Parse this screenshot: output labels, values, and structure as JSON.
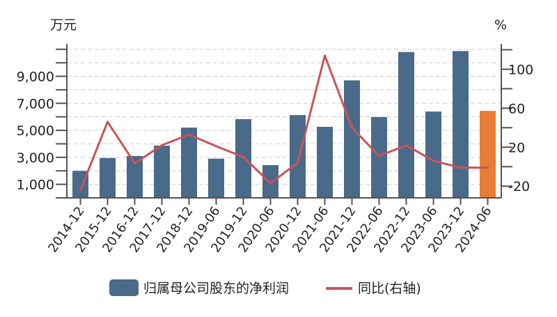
{
  "chart_data": {
    "type": "bar+line",
    "left_unit": "万元",
    "right_unit": "%",
    "categories": [
      "2014-12",
      "2015-12",
      "2016-12",
      "2017-12",
      "2018-12",
      "2019-06",
      "2019-12",
      "2020-06",
      "2020-12",
      "2021-06",
      "2021-12",
      "2022-06",
      "2022-12",
      "2023-06",
      "2023-12",
      "2024-06"
    ],
    "series": [
      {
        "name": "归属母公司股东的净利润",
        "type": "bar",
        "axis": "left",
        "values": [
          2000,
          2950,
          3100,
          3870,
          5200,
          2900,
          5830,
          2420,
          6130,
          5260,
          8700,
          5980,
          10800,
          6390,
          10870,
          6440
        ]
      },
      {
        "name": "同比(右轴)",
        "type": "line",
        "axis": "right",
        "values": [
          -24,
          46,
          3.5,
          22,
          33,
          21,
          10,
          -17,
          4,
          114,
          40,
          11,
          22,
          6,
          -1,
          -1
        ]
      }
    ],
    "left_ticks": [
      "1,000",
      "3,000",
      "5,000",
      "7,000",
      "9,000"
    ],
    "left_tick_values": [
      1000,
      3000,
      5000,
      7000,
      9000
    ],
    "left_ylim": [
      0,
      11400
    ],
    "right_ticks": [
      "-20",
      "20",
      "60",
      "100"
    ],
    "right_tick_values": [
      -20,
      20,
      60,
      100
    ],
    "right_ylim": [
      -32,
      126
    ],
    "grid": true,
    "legend_position": "bottom",
    "colors": {
      "bar": "#4a6a89",
      "bar_highlight": "#e87d35",
      "line": "#c9535a",
      "axis": "#5a5050",
      "grid": "#d8c8c8"
    }
  }
}
